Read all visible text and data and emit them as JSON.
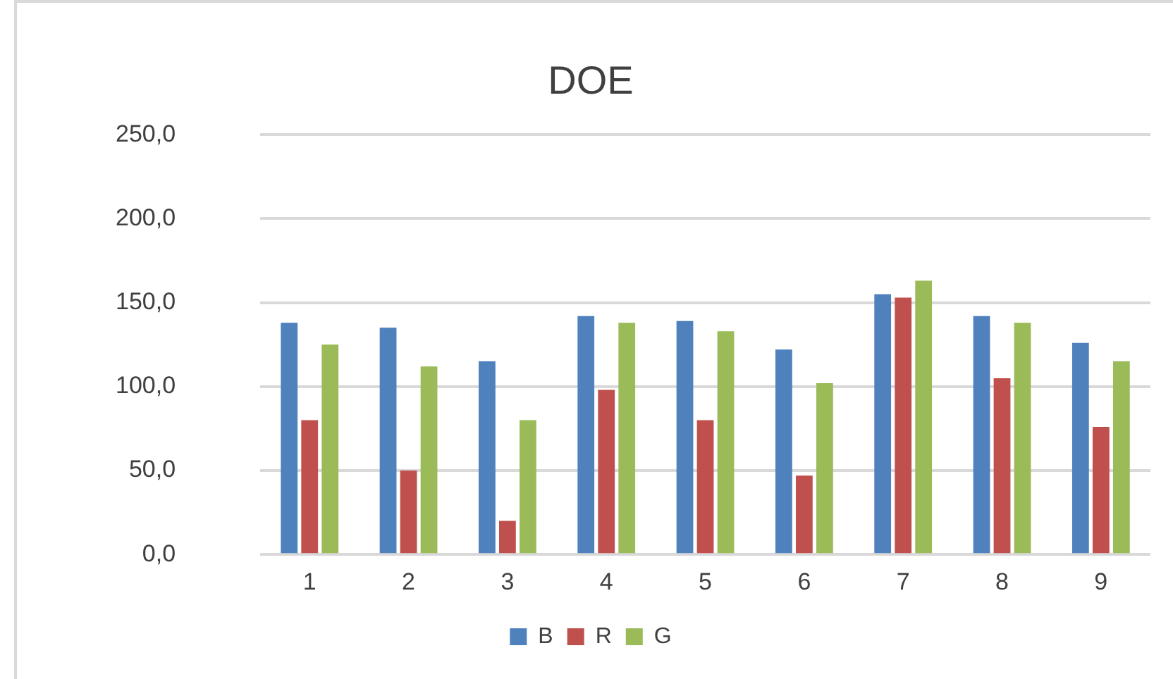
{
  "chart_data": {
    "type": "bar",
    "title": "DOE",
    "categories": [
      "1",
      "2",
      "3",
      "4",
      "5",
      "6",
      "7",
      "8",
      "9"
    ],
    "series": [
      {
        "name": "B",
        "color": "#4f81bd",
        "values": [
          138,
          135,
          115,
          142,
          139,
          122,
          155,
          142,
          126
        ]
      },
      {
        "name": "R",
        "color": "#c0504d",
        "values": [
          80,
          50,
          20,
          98,
          80,
          47,
          153,
          105,
          76
        ]
      },
      {
        "name": "G",
        "color": "#9bbb59",
        "values": [
          125,
          112,
          80,
          138,
          133,
          102,
          163,
          138,
          115
        ]
      }
    ],
    "ylim": [
      0,
      250
    ],
    "yticks": [
      {
        "value": 0,
        "label": "0,0"
      },
      {
        "value": 50,
        "label": "50,0"
      },
      {
        "value": 100,
        "label": "100,0"
      },
      {
        "value": 150,
        "label": "150,0"
      },
      {
        "value": 200,
        "label": "200,0"
      },
      {
        "value": 250,
        "label": "250,0"
      }
    ],
    "grid": "y",
    "legend": "bottom"
  }
}
